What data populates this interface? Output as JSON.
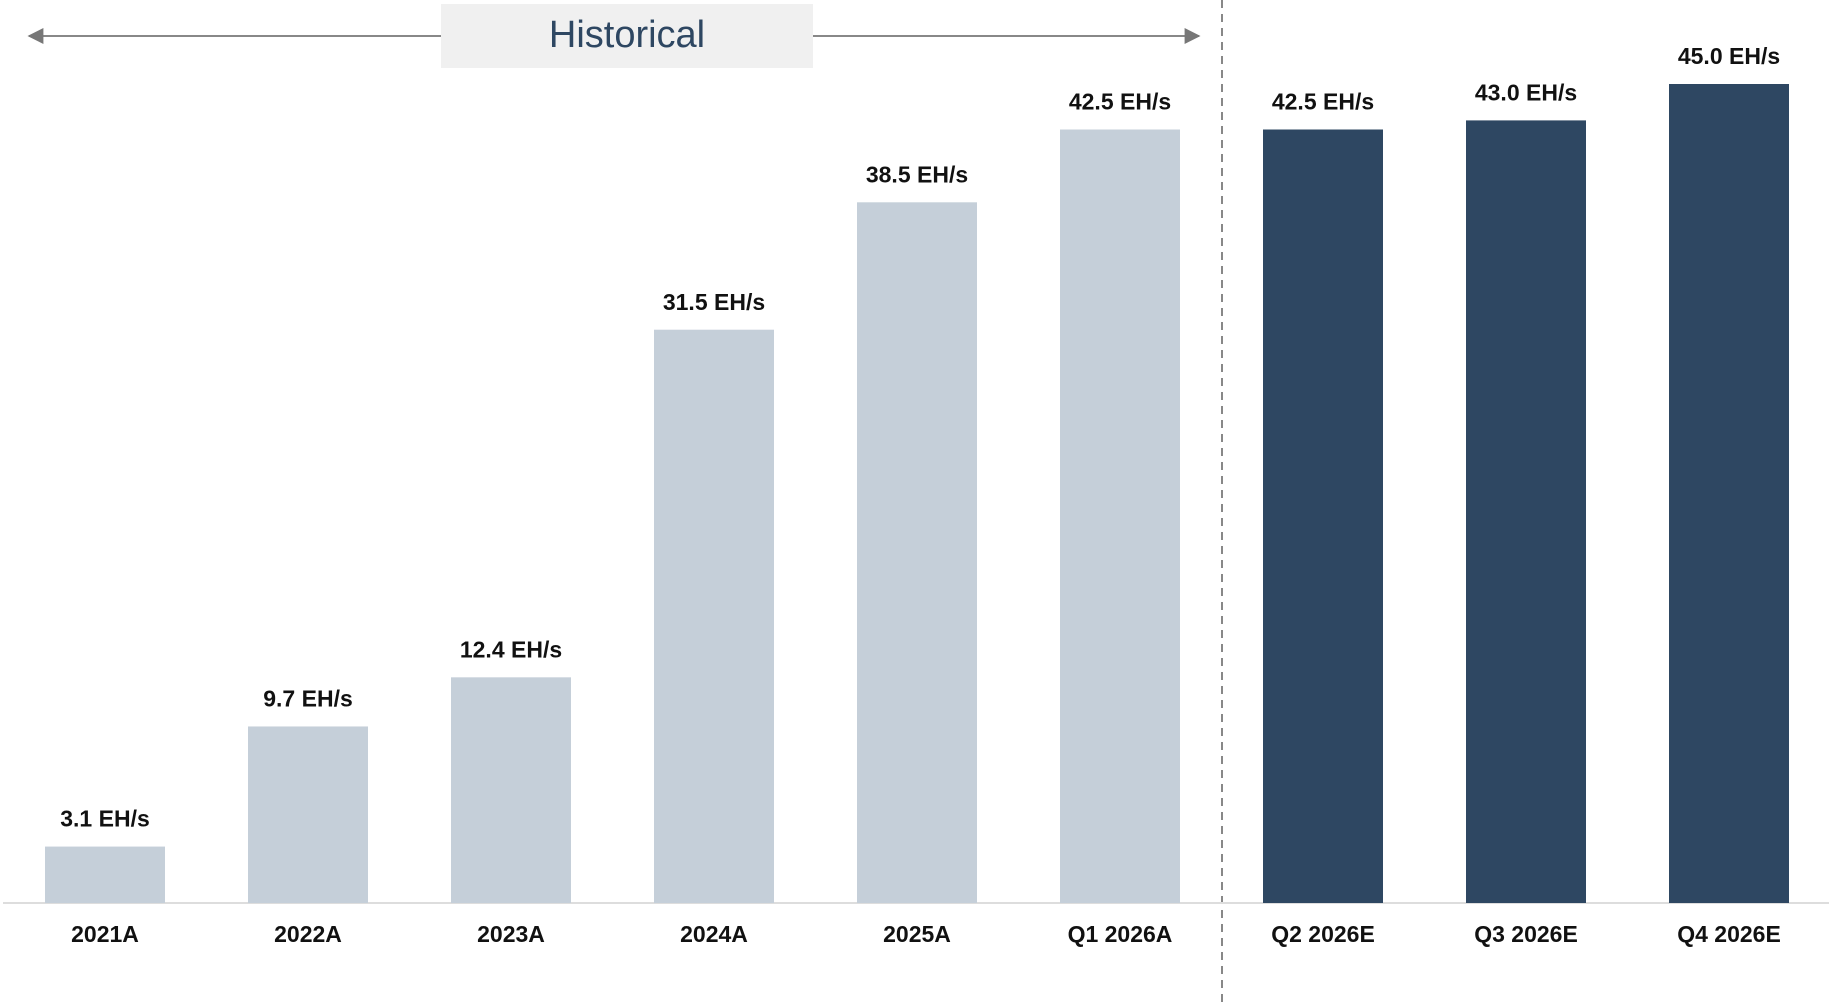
{
  "chart_data": {
    "type": "bar",
    "annotation": "Historical",
    "categories": [
      "2021A",
      "2022A",
      "2023A",
      "2024A",
      "2025A",
      "Q1 2026A",
      "Q2 2026E",
      "Q3 2026E",
      "Q4 2026E"
    ],
    "values": [
      3.1,
      9.7,
      12.4,
      31.5,
      38.5,
      42.5,
      42.5,
      43.0,
      45.0
    ],
    "value_labels": [
      "3.1 EH/s",
      "9.7 EH/s",
      "12.4 EH/s",
      "31.5 EH/s",
      "38.5 EH/s",
      "42.5 EH/s",
      "42.5 EH/s",
      "43.0 EH/s",
      "45.0 EH/s"
    ],
    "colors": [
      "#c5cfd9",
      "#c5cfd9",
      "#c5cfd9",
      "#c5cfd9",
      "#c5cfd9",
      "#c5cfd9",
      "#2e4762",
      "#2e4762",
      "#2e4762"
    ],
    "ylim": [
      0,
      45
    ]
  }
}
